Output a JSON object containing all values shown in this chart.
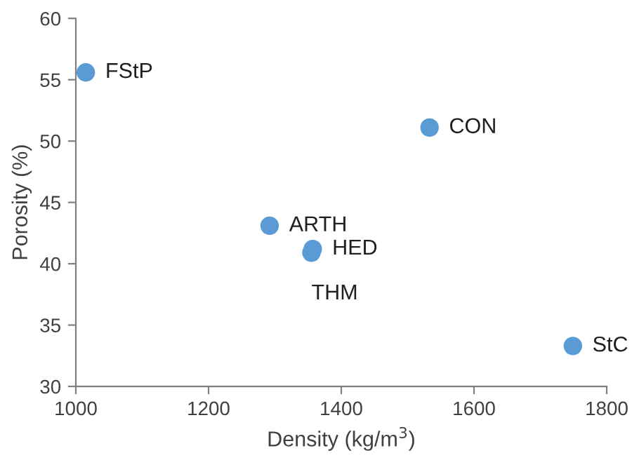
{
  "chart_data": {
    "type": "scatter",
    "xlabel": "Density (kg/m$^{3}$)",
    "ylabel": "Porosity (%)",
    "x": [
      1015,
      1533,
      1292,
      1357,
      1355,
      1749
    ],
    "series": [
      {
        "color": "#5b9bd5",
        "values": [
          55.6,
          51.1,
          43.1,
          41.2,
          40.9,
          33.3
        ]
      }
    ],
    "xlim": [
      1000,
      1800
    ],
    "xticks": [
      1000,
      1200,
      1400,
      1600,
      1800
    ],
    "ylim": [
      30,
      60
    ],
    "yticks": [
      30,
      35,
      40,
      45,
      50,
      55,
      60
    ],
    "grid": false,
    "legend": false,
    "marker": "circle",
    "annotations": [
      {
        "text": "FStP",
        "x": 1015,
        "y": 55.6
      },
      {
        "text": "CON",
        "x": 1533,
        "y": 51.1
      },
      {
        "text": "ARTH",
        "x": 1292,
        "y": 43.1
      },
      {
        "text": "HED",
        "x": 1357,
        "y": 41.2
      },
      {
        "text": "THM",
        "x": 1355,
        "y": 40.9
      },
      {
        "text": "StC",
        "x": 1749,
        "y": 33.3
      }
    ]
  }
}
